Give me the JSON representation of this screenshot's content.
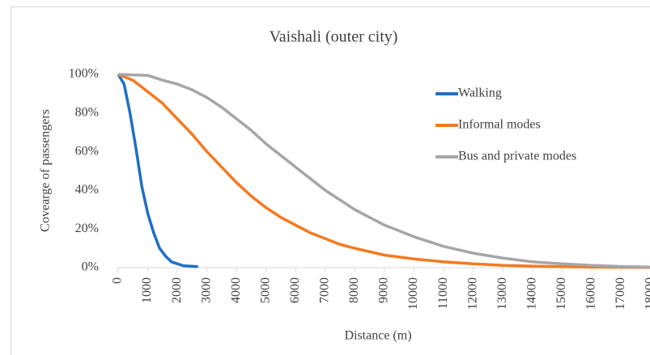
{
  "chart_data": {
    "type": "line",
    "title": "Vaishali (outer city)",
    "xlabel": "Distance (m)",
    "ylabel": "Covearge of passengers",
    "xlim": [
      0,
      18000
    ],
    "xticks": [
      0,
      1000,
      2000,
      3000,
      4000,
      5000,
      6000,
      7000,
      8000,
      9000,
      10000,
      11000,
      12000,
      13000,
      14000,
      15000,
      16000,
      17000,
      18000
    ],
    "ylim": [
      0,
      100
    ],
    "yticks": [
      {
        "value": 0,
        "label": "0%"
      },
      {
        "value": 20,
        "label": "20%"
      },
      {
        "value": 40,
        "label": "40%"
      },
      {
        "value": 60,
        "label": "60%"
      },
      {
        "value": 80,
        "label": "80%"
      },
      {
        "value": 100,
        "label": "100%"
      }
    ],
    "grid": false,
    "legend": "upper right",
    "series": [
      {
        "name": "Walking",
        "color": "#1f6fc5",
        "x": [
          0,
          200,
          400,
          600,
          800,
          1000,
          1200,
          1400,
          1600,
          1800,
          2000,
          2200,
          2700
        ],
        "values": [
          100,
          95,
          80,
          62,
          42,
          28,
          18,
          10,
          6,
          3,
          2,
          1,
          0.5
        ]
      },
      {
        "name": "Informal modes",
        "color": "#f47a20",
        "x": [
          0,
          500,
          1000,
          1500,
          2000,
          2500,
          3000,
          3500,
          4000,
          4500,
          5000,
          5500,
          6000,
          6500,
          7000,
          7500,
          8000,
          9000,
          10000,
          11000,
          12000,
          13000,
          14000,
          15000,
          16000,
          17000,
          18000
        ],
        "values": [
          100,
          97,
          91,
          85,
          77,
          69,
          60,
          52,
          44,
          37,
          31,
          26,
          22,
          18,
          15,
          12,
          10,
          6.5,
          4.5,
          3,
          2,
          1.2,
          0.8,
          0.5,
          0.3,
          0.2,
          0.1
        ]
      },
      {
        "name": "Bus and private modes",
        "color": "#a6a6a6",
        "x": [
          0,
          1000,
          1500,
          2000,
          2500,
          3000,
          3500,
          4000,
          4500,
          5000,
          5500,
          6000,
          7000,
          8000,
          9000,
          10000,
          11000,
          12000,
          13000,
          14000,
          15000,
          16000,
          17000,
          18000
        ],
        "values": [
          100,
          99.5,
          97,
          95,
          92,
          88,
          83,
          77,
          71,
          64,
          58,
          52,
          40,
          30,
          22,
          16,
          11,
          7.5,
          5,
          3,
          2,
          1.2,
          0.6,
          0.3
        ]
      }
    ]
  }
}
